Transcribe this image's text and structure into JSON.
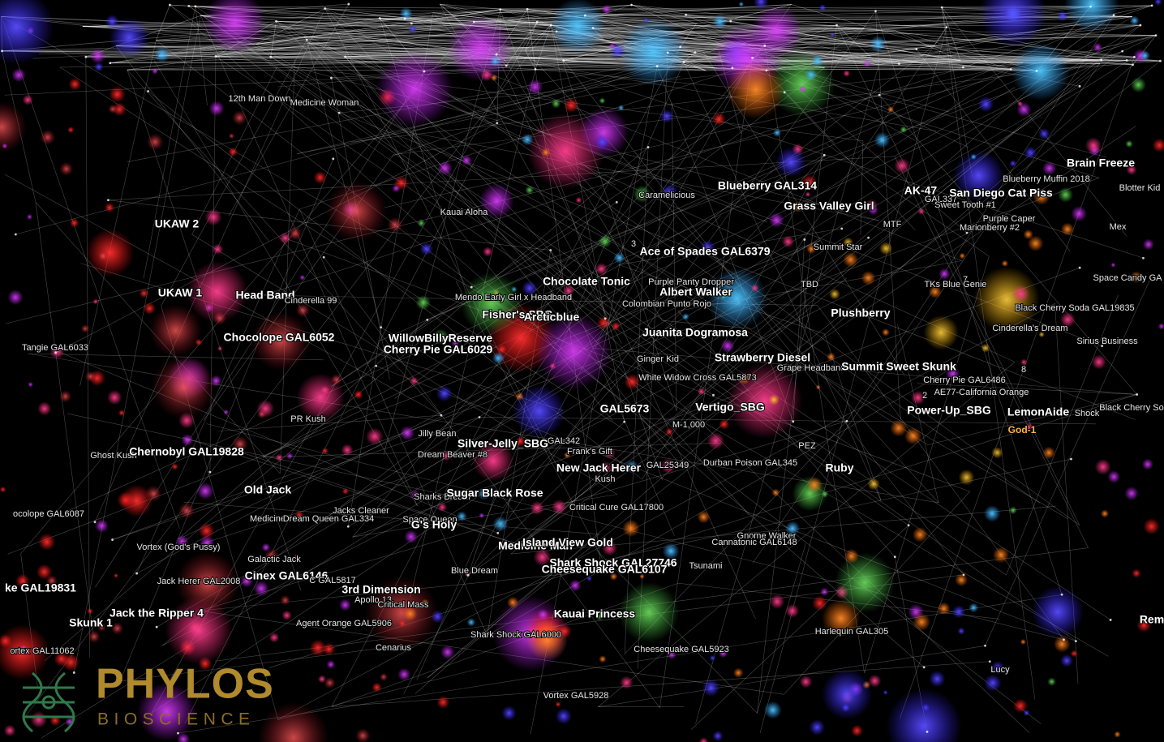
{
  "labels": [
    "12th Man Down",
    "Medicine Woman",
    "UKAW 2",
    "Kauai Aloha",
    "Caramelicious",
    "Blueberry GAL314",
    "Grass Valley Girl",
    "AK-47",
    "GAL337",
    "San Diego Cat Piss",
    "Brain Freeze",
    "Blueberry Muffin 2018",
    "Blotter Kid",
    "Sweet Tooth #1",
    "Purple Caper",
    "Marionberry #2",
    "MTF",
    "Mex",
    "3",
    "Ace of Spades GAL6379",
    "Summit Star",
    "UKAW 1",
    "Head Band",
    "Cinderella 99",
    "Mendo Early Girl x Headband",
    "Chocolate Tonic",
    "Purple Panty Dropper",
    "Albert Walker",
    "Colombian Punto Rojo",
    "TBD",
    "7",
    "TKs Blue Genie",
    "Space Candy GA",
    "Fisher's SBG",
    "Arcticblue",
    "Plushberry",
    "Black Cherry Soda GAL19835",
    "Cinderella's Dream",
    "Juanita Dogramosa",
    "Sirius Business",
    "Tangie GAL6033",
    "Chocolope GAL6052",
    "WillowBillyReserve",
    "Cherry Pie GAL6029",
    "Ginger Kid",
    "Strawberry Diesel",
    "Grape Headband",
    "Summit Sweet Skunk",
    "8",
    "White Widow Cross GAL5873",
    "Cherry Pie GAL6486",
    "2",
    "AE77-California Orange",
    "PR Kush",
    "GAL5673",
    "Vertigo_SBG",
    "Power-Up_SBG",
    "LemonAide",
    "Shock",
    "Black Cherry So",
    "M-1,000",
    "Jilly Bean",
    "God-1",
    "Ghost Kush",
    "Chernobyl GAL19828",
    "Silver-Jelly_SBG",
    "GAL342",
    "Frank's Gift",
    "Dream Beaver #8",
    "New Jack Herer",
    "GAL25349",
    "Durban Poison GAL345",
    "PEZ",
    "Kush",
    "Ruby",
    "Old Jack",
    "Sharks Breath",
    "Sugar Black Rose",
    "ocolope GAL6087",
    "Jacks Cleaner",
    "Medicine",
    "Dream Queen GAL334",
    "Space Queen",
    "G's Holy",
    "Critical Cure GAL17800",
    "Gnome Walker",
    "Cannatonic GAL6148",
    "Medicine Man",
    "Island View Gold",
    "Vortex (God's Pussy)",
    "Galactic Jack",
    "Shark Shock GAL27746",
    "Blue Dream",
    "Cheesequake GAL6107",
    "Tsunami",
    "Jack Herer GAL2008",
    "Cinex GAL6146",
    "C GAL5817",
    "ke GAL19831",
    "3rd Dimension",
    "Apollo 13",
    "Critical Mass",
    "Jack the Ripper 4",
    "Kauai Princess",
    "Skunk 1",
    "Agent Orange GAL5906",
    "Rem",
    "Harlequin GAL305",
    "Shark Shock GAL6000",
    "Cenarius",
    "ortex GAL11062",
    "Cheesequake GAL5923",
    "Lucy",
    "Vortex GAL5928"
  ],
  "logo": {
    "name": "PHYLOS",
    "tagline": "BIOSCIENCE"
  }
}
